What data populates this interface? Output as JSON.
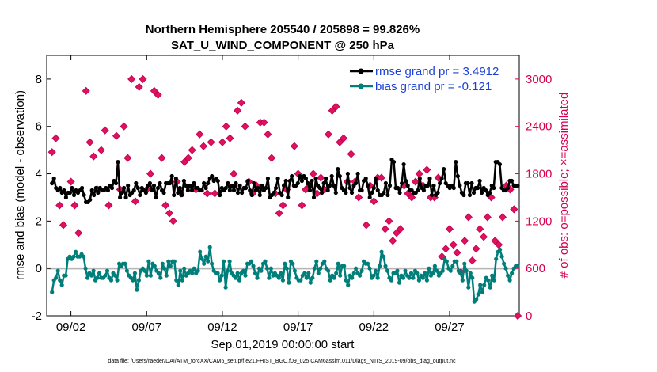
{
  "chart_data": {
    "type": "line",
    "title": "Northern Hemisphere 205540 / 205898 = 99.826%",
    "subtitle": "SAT_U_WIND_COMPONENT @ 250 hPa",
    "xlabel": "Sep.01,2019 00:00:00 start",
    "ylabel": "rmse and bias (model - observation)",
    "y2label": "# of obs: o=possible; ×=assimilated",
    "footnote": "data file: /Users/raeder/DAI/ATM_forcXX/CAM6_setup/f.e21.FHIST_BGC.f09_025.CAM6assim.011/Diags_NTrS_2019-09/obs_diag_output.nc",
    "xlim": [
      0.4,
      31.6
    ],
    "ylim": [
      -2,
      9
    ],
    "y2lim": [
      0,
      3300
    ],
    "xticks": [
      2,
      7,
      12,
      17,
      22,
      27
    ],
    "xtick_labels": [
      "09/02",
      "09/07",
      "09/12",
      "09/17",
      "09/22",
      "09/27"
    ],
    "yticks": [
      -2,
      0,
      2,
      4,
      6,
      8
    ],
    "y2ticks": [
      0,
      600,
      1200,
      1800,
      2400,
      3000
    ],
    "series": [
      {
        "name": "rmse grand pr = 3.4912",
        "color": "#000000",
        "values": [
          3.6,
          3.8,
          3.4,
          3.3,
          3.4,
          3.2,
          3.3,
          3.0,
          3.2,
          3.2,
          3.4,
          3.1,
          3.3,
          3.2,
          3.3,
          3.4,
          3.1,
          2.8,
          2.8,
          2.9,
          3.3,
          3.1,
          3.4,
          3.2,
          3.4,
          3.3,
          3.3,
          3.4,
          3.3,
          3.5,
          3.4,
          3.7,
          3.6,
          4.5,
          3.0,
          3.2,
          3.4,
          3.0,
          3.5,
          3.1,
          3.2,
          3.3,
          3.6,
          3.4,
          3.1,
          3.4,
          3.3,
          3.2,
          3.5,
          3.6,
          3.3,
          3.5,
          3.0,
          3.4,
          3.6,
          3.3,
          3.2,
          3.6,
          3.6,
          3.6,
          3.9,
          3.1,
          3.8,
          3.2,
          3.4,
          3.1,
          3.7,
          3.5,
          3.3,
          3.5,
          3.3,
          3.6,
          3.4,
          3.4,
          3.3,
          3.3,
          3.6,
          3.4,
          3.6,
          3.8,
          3.9,
          3.7,
          3.8,
          3.7,
          3.1,
          3.4,
          3.3,
          3.4,
          3.6,
          3.3,
          3.5,
          3.3,
          3.6,
          3.2,
          3.5,
          3.2,
          3.4,
          3.4,
          3.7,
          3.3,
          3.1,
          3.6,
          3.3,
          3.4,
          3.1,
          3.5,
          3.3,
          3.4,
          3.8,
          3.0,
          3.1,
          3.2,
          3.4,
          3.8,
          3.2,
          3.1,
          3.5,
          3.7,
          3.0,
          3.7,
          3.9,
          3.5,
          3.5,
          3.6,
          3.9,
          3.7,
          3.9,
          3.8,
          3.6,
          3.3,
          3.7,
          3.0,
          3.8,
          3.5,
          3.4,
          3.2,
          3.6,
          3.8,
          3.3,
          3.5,
          3.9,
          3.5,
          3.2,
          4.2,
          3.9,
          3.4,
          3.3,
          3.2,
          4.0,
          3.4,
          3.2,
          3.5,
          3.6,
          4.0,
          3.3,
          3.3,
          3.7,
          3.8,
          3.5,
          3.0,
          3.2,
          3.4,
          3.8,
          3.3,
          3.1,
          3.1,
          3.2,
          3.6,
          3.1,
          3.5,
          4.6,
          4.5,
          3.4,
          3.4,
          3.2,
          3.6,
          4.4,
          3.7,
          3.5,
          3.3,
          3.3,
          3.2,
          3.2,
          3.3,
          3.8,
          3.4,
          3.3,
          3.5,
          3.5,
          3.8,
          3.1,
          3.5,
          3.1,
          3.2,
          3.6,
          3.8,
          4.2,
          3.6,
          3.5,
          3.4,
          3.5,
          3.4,
          4.5,
          3.9,
          3.5,
          3.2,
          3.1,
          3.6,
          3.6,
          3.1,
          3.6,
          3.2,
          3.4,
          3.4,
          3.7,
          3.2,
          3.4,
          3.3,
          3.1,
          3.2,
          3.5,
          3.4,
          4.5,
          4.5,
          4.4,
          3.4,
          3.3,
          3.3,
          3.4,
          3.7,
          3.7,
          3.5,
          3.5,
          3.5
        ]
      },
      {
        "name": "bias grand pr = -0.121",
        "color": "#007f7a",
        "values": [
          -1.0,
          -0.5,
          -0.4,
          -0.1,
          -0.5,
          -0.7,
          -0.3,
          -0.3,
          0.4,
          0.5,
          0.4,
          0.5,
          0.7,
          0.5,
          0.5,
          0.6,
          0.5,
          0.0,
          -0.4,
          -0.2,
          -0.3,
          -0.1,
          -0.5,
          -0.4,
          -0.2,
          -0.4,
          -0.4,
          -0.3,
          -0.1,
          -0.4,
          -0.5,
          -0.2,
          -0.3,
          -0.5,
          0.2,
          0.1,
          0.2,
          0.2,
          -0.1,
          -0.3,
          -0.4,
          -0.5,
          -0.2,
          -0.9,
          -0.5,
          -0.1,
          0.0,
          -0.1,
          -0.3,
          0.3,
          -0.3,
          0.2,
          0.1,
          -0.1,
          -0.2,
          -0.4,
          0.2,
          0.0,
          -0.3,
          0.3,
          0.1,
          0.3,
          0.3,
          -0.5,
          -0.7,
          -0.1,
          -0.5,
          0.0,
          -0.3,
          -0.2,
          -0.1,
          -0.2,
          0.0,
          -0.2,
          -0.1,
          0.7,
          0.4,
          0.2,
          0.5,
          0.3,
          0.9,
          0.2,
          -0.1,
          -0.2,
          -0.2,
          -0.5,
          -0.3,
          0.3,
          -0.8,
          -0.1,
          0.3,
          -0.2,
          -0.3,
          -0.4,
          -0.2,
          -0.5,
          -0.2,
          -0.1,
          -0.3,
          0.2,
          0.2,
          0.3,
          0.1,
          -0.2,
          -0.4,
          0.0,
          -0.1,
          0.2,
          0.3,
          0.0,
          -0.4,
          0.0,
          -0.3,
          -0.2,
          -0.3,
          -0.4,
          -0.2,
          -0.5,
          0.2,
          0.0,
          -0.6,
          0.3,
          0.2,
          -0.1,
          -0.4,
          -0.5,
          -0.5,
          -0.3,
          -0.2,
          -0.4,
          -0.2,
          -0.6,
          -0.4,
          0.0,
          0.3,
          -0.2,
          0.0,
          0.2,
          0.3,
          0.0,
          -0.1,
          -0.5,
          -0.3,
          -0.4,
          -0.2,
          0.2,
          -0.3,
          0.1,
          0.1,
          -0.5,
          -0.7,
          -0.3,
          -0.4,
          -0.2,
          0.0,
          -0.2,
          -0.3,
          -0.1,
          0.3,
          0.2,
          0.2,
          0.0,
          -0.4,
          -0.3,
          -0.1,
          -0.4,
          0.1,
          0.7,
          0.5,
          0.1,
          -0.1,
          -0.4,
          -0.5,
          -0.2,
          -0.2,
          -0.1,
          -0.6,
          -0.3,
          -0.4,
          -0.1,
          -0.3,
          -0.4,
          -0.2,
          -0.4,
          -0.1,
          -0.2,
          -0.5,
          -0.3,
          -0.4,
          -0.2,
          -0.5,
          0.0,
          -0.3,
          -0.2,
          0.1,
          -0.1,
          -0.3,
          -0.2,
          -0.1,
          0.4,
          0.3,
          0.0,
          -0.1,
          0.1,
          0.3,
          0.3,
          -0.1,
          -0.2,
          -0.5,
          0.2,
          -0.1,
          -0.8,
          -0.2,
          -0.4,
          -1.4,
          -1.3,
          -1.1,
          -0.7,
          -1.0,
          -0.7,
          -0.4,
          -0.5,
          -0.8,
          -0.3,
          -0.5,
          0.4,
          0.7,
          0.8,
          0.5,
          0.2,
          0.0,
          -0.3,
          -0.5,
          -0.2,
          0.0,
          0.1,
          0.1
        ]
      }
    ],
    "obs_possible": [
      [
        0.75,
        2075
      ],
      [
        1.0,
        2250
      ],
      [
        1.25,
        1400
      ],
      [
        1.5,
        1150
      ],
      [
        2.0,
        1700
      ],
      [
        2.25,
        1400
      ],
      [
        2.5,
        1050
      ],
      [
        3.0,
        2850
      ],
      [
        3.25,
        2200
      ],
      [
        3.5,
        2020
      ],
      [
        3.75,
        1600
      ],
      [
        4.0,
        2100
      ],
      [
        4.25,
        2350
      ],
      [
        4.5,
        1400
      ],
      [
        5.0,
        2280
      ],
      [
        5.25,
        1600
      ],
      [
        5.5,
        2400
      ],
      [
        5.75,
        2000
      ],
      [
        6.0,
        3000
      ],
      [
        6.25,
        1450
      ],
      [
        6.5,
        2900
      ],
      [
        6.75,
        3000
      ],
      [
        7.0,
        1600
      ],
      [
        7.25,
        1800
      ],
      [
        7.5,
        2850
      ],
      [
        7.75,
        2800
      ],
      [
        8.0,
        2000
      ],
      [
        8.25,
        1400
      ],
      [
        8.5,
        1300
      ],
      [
        8.75,
        1200
      ],
      [
        9.0,
        1700
      ],
      [
        9.25,
        1550
      ],
      [
        9.5,
        1950
      ],
      [
        9.75,
        2000
      ],
      [
        10.0,
        2100
      ],
      [
        10.25,
        1600
      ],
      [
        10.5,
        2300
      ],
      [
        10.75,
        2150
      ],
      [
        11.0,
        1550
      ],
      [
        11.25,
        2200
      ],
      [
        11.5,
        1550
      ],
      [
        12.0,
        2200
      ],
      [
        12.25,
        2400
      ],
      [
        12.5,
        2250
      ],
      [
        12.75,
        1800
      ],
      [
        13.0,
        2600
      ],
      [
        13.25,
        2700
      ],
      [
        13.5,
        2400
      ],
      [
        13.75,
        1700
      ],
      [
        14.0,
        1550
      ],
      [
        14.25,
        1650
      ],
      [
        14.5,
        2450
      ],
      [
        14.75,
        2450
      ],
      [
        15.0,
        2300
      ],
      [
        15.25,
        2000
      ],
      [
        15.5,
        1550
      ],
      [
        15.75,
        1300
      ],
      [
        16.0,
        1400
      ],
      [
        16.25,
        1600
      ],
      [
        16.75,
        2150
      ],
      [
        17.0,
        1800
      ],
      [
        17.25,
        1400
      ],
      [
        17.5,
        1600
      ],
      [
        17.75,
        1650
      ],
      [
        18.0,
        1800
      ],
      [
        18.25,
        1550
      ],
      [
        18.5,
        1750
      ],
      [
        18.75,
        1600
      ],
      [
        19.0,
        2300
      ],
      [
        19.25,
        2600
      ],
      [
        19.5,
        2650
      ],
      [
        19.75,
        2200
      ],
      [
        20.0,
        2250
      ],
      [
        20.25,
        1700
      ],
      [
        20.5,
        2050
      ],
      [
        20.75,
        1700
      ],
      [
        21.0,
        1500
      ],
      [
        21.5,
        1150
      ],
      [
        21.75,
        1650
      ],
      [
        22.0,
        1450
      ],
      [
        22.25,
        1750
      ],
      [
        22.5,
        1750
      ],
      [
        22.75,
        1100
      ],
      [
        23.0,
        1200
      ],
      [
        23.25,
        950
      ],
      [
        23.5,
        1050
      ],
      [
        23.75,
        1100
      ],
      [
        24.0,
        1650
      ],
      [
        24.25,
        1550
      ],
      [
        24.5,
        1500
      ],
      [
        24.75,
        1700
      ],
      [
        25.0,
        1800
      ],
      [
        25.25,
        1650
      ],
      [
        25.5,
        1850
      ],
      [
        25.75,
        1500
      ],
      [
        26.0,
        1500
      ],
      [
        26.25,
        1750
      ],
      [
        26.5,
        750
      ],
      [
        26.75,
        850
      ],
      [
        27.0,
        1100
      ],
      [
        27.25,
        900
      ],
      [
        27.5,
        800
      ],
      [
        27.75,
        550
      ],
      [
        28.0,
        950
      ],
      [
        28.25,
        1250
      ],
      [
        28.5,
        700
      ],
      [
        28.75,
        850
      ],
      [
        29.0,
        1100
      ],
      [
        29.25,
        1000
      ],
      [
        29.5,
        1250
      ],
      [
        29.75,
        1500
      ],
      [
        30.0,
        950
      ],
      [
        30.25,
        900
      ],
      [
        30.5,
        1250
      ],
      [
        30.75,
        1650
      ],
      [
        31.0,
        1600
      ],
      [
        31.25,
        1350
      ],
      [
        31.5,
        0
      ]
    ]
  }
}
